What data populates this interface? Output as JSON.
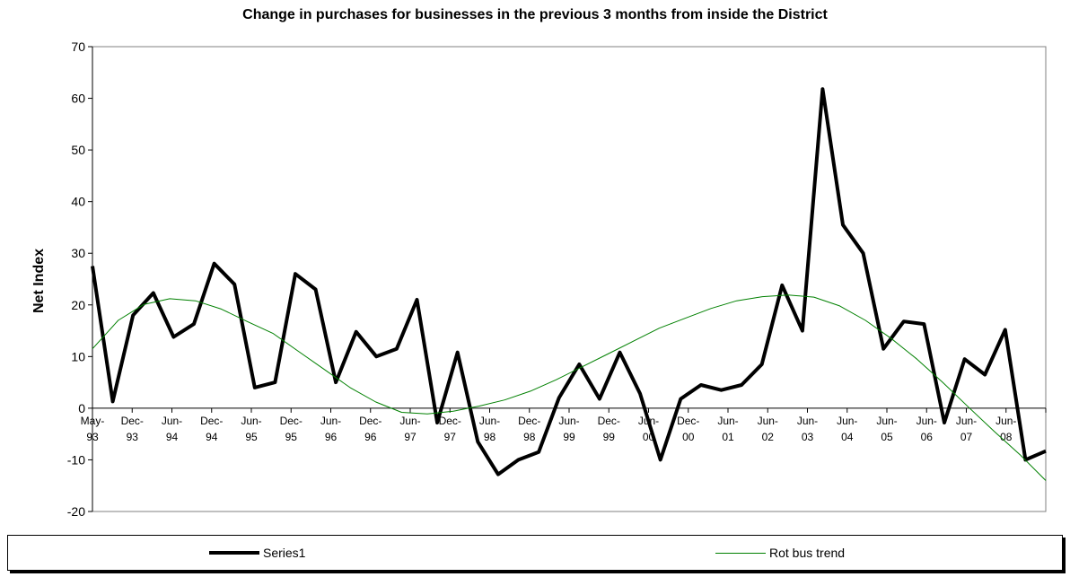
{
  "chart_data": {
    "type": "line",
    "title": "Change in purchases for businesses in the previous 3 months from inside the District",
    "xlabel": "",
    "ylabel": "Net Index",
    "ylim": [
      -20,
      70
    ],
    "yticks": [
      -20,
      -10,
      0,
      10,
      20,
      30,
      40,
      50,
      60,
      70
    ],
    "grid": false,
    "legend_position": "bottom",
    "x_tick_labels": [
      [
        "May-",
        "93"
      ],
      [
        "Dec-",
        "93"
      ],
      [
        "Jun-",
        "94"
      ],
      [
        "Dec-",
        "94"
      ],
      [
        "Jun-",
        "95"
      ],
      [
        "Dec-",
        "95"
      ],
      [
        "Jun-",
        "96"
      ],
      [
        "Dec-",
        "96"
      ],
      [
        "Jun-",
        "97"
      ],
      [
        "Dec-",
        "97"
      ],
      [
        "Jun-",
        "98"
      ],
      [
        "Dec-",
        "98"
      ],
      [
        "Jun-",
        "99"
      ],
      [
        "Dec-",
        "99"
      ],
      [
        "Jun-",
        "00"
      ],
      [
        "Dec-",
        "00"
      ],
      [
        "Jun-",
        "01"
      ],
      [
        "Jun-",
        "02"
      ],
      [
        "Jun-",
        "03"
      ],
      [
        "Jun-",
        "04"
      ],
      [
        "Jun-",
        "05"
      ],
      [
        "Jun-",
        "06"
      ],
      [
        "Jun-",
        "07"
      ],
      [
        "Jun-",
        "08"
      ]
    ],
    "series": [
      {
        "name": "Series1",
        "color": "#000000",
        "values": [
          27.5,
          1.3,
          18.0,
          22.3,
          13.8,
          16.3,
          28.0,
          24.0,
          4.0,
          5.0,
          26.0,
          23.0,
          5.0,
          14.8,
          10.0,
          11.5,
          21.0,
          -2.8,
          10.8,
          -6.5,
          -12.8,
          -10.0,
          -8.5,
          2.0,
          8.5,
          1.8,
          10.8,
          2.8,
          -10.0,
          1.8,
          4.5,
          3.5,
          4.5,
          8.5,
          23.8,
          15.0,
          61.8,
          35.5,
          30.0,
          11.5,
          16.8,
          16.3,
          -2.8,
          9.5,
          6.5,
          15.2,
          -10.0,
          -8.3
        ]
      },
      {
        "name": "Rot bus trend",
        "color": "#008000",
        "values": [
          11.5,
          17.0,
          20.1,
          21.2,
          20.8,
          19.2,
          16.8,
          14.5,
          11.0,
          7.5,
          4.0,
          1.2,
          -0.8,
          -1.1,
          -0.6,
          0.4,
          1.6,
          3.3,
          5.5,
          8.0,
          10.5,
          13.0,
          15.5,
          17.4,
          19.3,
          20.8,
          21.6,
          21.9,
          21.5,
          19.8,
          17.0,
          13.5,
          9.5,
          5.0,
          0.2,
          -4.5,
          -9.0,
          -14.0
        ]
      }
    ]
  }
}
